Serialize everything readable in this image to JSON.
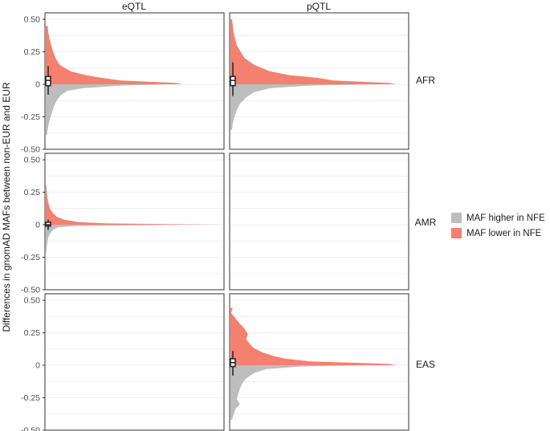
{
  "chart_data": {
    "type": "area",
    "description_free": true,
    "columns": [
      "eQTL",
      "pQTL"
    ],
    "rows": [
      "AFR",
      "AMR",
      "EAS"
    ],
    "ylabel": "Differences in gnomAD MAFs between non-EUR and EUR",
    "ylim": [
      -0.5,
      0.55
    ],
    "yticks": [
      0.5,
      0.25,
      0,
      -0.25,
      -0.5
    ],
    "ytick_labels": [
      "0.50",
      "0.25",
      "0",
      "-0.25",
      "-0.50"
    ],
    "grid": true,
    "legend": {
      "placement": "right",
      "entries": [
        {
          "label": "MAF higher in NFE",
          "color": "#bdbdbd"
        },
        {
          "label": "MAF lower in NFE",
          "color": "#f4806f"
        }
      ]
    },
    "colors": {
      "higher": "#bdbdbd",
      "lower": "#f4806f",
      "box": "#2b2b2b"
    },
    "panels": [
      {
        "row": "AFR",
        "col": "eQTL",
        "present": true,
        "x_max": 0.28,
        "lower": [
          [
            0.45,
            0.003
          ],
          [
            0.4,
            0.004
          ],
          [
            0.35,
            0.006
          ],
          [
            0.3,
            0.009
          ],
          [
            0.25,
            0.012
          ],
          [
            0.2,
            0.016
          ],
          [
            0.15,
            0.022
          ],
          [
            0.1,
            0.04
          ],
          [
            0.07,
            0.065
          ],
          [
            0.05,
            0.09
          ],
          [
            0.03,
            0.12
          ],
          [
            0.01,
            0.21
          ],
          [
            0.0,
            0.22
          ]
        ],
        "higher": [
          [
            0.0,
            0.2
          ],
          [
            -0.01,
            0.12
          ],
          [
            -0.03,
            0.06
          ],
          [
            -0.05,
            0.035
          ],
          [
            -0.08,
            0.025
          ],
          [
            -0.12,
            0.018
          ],
          [
            -0.16,
            0.014
          ],
          [
            -0.2,
            0.011
          ],
          [
            -0.25,
            0.008
          ],
          [
            -0.3,
            0.005
          ],
          [
            -0.35,
            0.003
          ],
          [
            -0.39,
            0.002
          ]
        ],
        "box": {
          "whisker_low": -0.08,
          "q1": -0.01,
          "median": 0.03,
          "q3": 0.06,
          "whisker_high": 0.14
        }
      },
      {
        "row": "AFR",
        "col": "pQTL",
        "present": true,
        "x_max": 0.22,
        "lower": [
          [
            0.5,
            0.002
          ],
          [
            0.45,
            0.003
          ],
          [
            0.4,
            0.004
          ],
          [
            0.35,
            0.006
          ],
          [
            0.3,
            0.008
          ],
          [
            0.25,
            0.013
          ],
          [
            0.2,
            0.018
          ],
          [
            0.15,
            0.03
          ],
          [
            0.1,
            0.05
          ],
          [
            0.07,
            0.075
          ],
          [
            0.05,
            0.11
          ],
          [
            0.03,
            0.13
          ],
          [
            0.01,
            0.2
          ],
          [
            0.0,
            0.21
          ]
        ],
        "higher": [
          [
            0.0,
            0.19
          ],
          [
            -0.01,
            0.1
          ],
          [
            -0.03,
            0.05
          ],
          [
            -0.06,
            0.03
          ],
          [
            -0.1,
            0.02
          ],
          [
            -0.15,
            0.012
          ],
          [
            -0.2,
            0.008
          ],
          [
            -0.25,
            0.005
          ],
          [
            -0.3,
            0.003
          ],
          [
            -0.35,
            0.002
          ]
        ],
        "box": {
          "whisker_low": -0.09,
          "q1": -0.01,
          "median": 0.03,
          "q3": 0.06,
          "whisker_high": 0.17
        }
      },
      {
        "row": "AMR",
        "col": "eQTL",
        "present": true,
        "x_max": 0.85,
        "lower": [
          [
            0.31,
            0.002
          ],
          [
            0.27,
            0.004
          ],
          [
            0.22,
            0.007
          ],
          [
            0.18,
            0.011
          ],
          [
            0.15,
            0.016
          ],
          [
            0.12,
            0.022
          ],
          [
            0.09,
            0.035
          ],
          [
            0.06,
            0.055
          ],
          [
            0.04,
            0.09
          ],
          [
            0.02,
            0.16
          ],
          [
            0.01,
            0.3
          ],
          [
            0.0,
            0.95
          ]
        ],
        "higher": [
          [
            0.0,
            0.6
          ],
          [
            -0.01,
            0.14
          ],
          [
            -0.02,
            0.06
          ],
          [
            -0.04,
            0.035
          ],
          [
            -0.07,
            0.02
          ],
          [
            -0.1,
            0.012
          ],
          [
            -0.14,
            0.007
          ],
          [
            -0.18,
            0.004
          ],
          [
            -0.22,
            0.002
          ]
        ],
        "box": {
          "whisker_low": -0.04,
          "q1": -0.01,
          "median": 0.0,
          "q3": 0.02,
          "whisker_high": 0.04
        }
      },
      {
        "row": "AMR",
        "col": "pQTL",
        "present": false
      },
      {
        "row": "EAS",
        "col": "eQTL",
        "present": false
      },
      {
        "row": "EAS",
        "col": "pQTL",
        "present": true,
        "x_max": 0.22,
        "lower": [
          [
            0.44,
            0.003
          ],
          [
            0.4,
            0.001
          ],
          [
            0.32,
            0.012
          ],
          [
            0.28,
            0.018
          ],
          [
            0.24,
            0.022
          ],
          [
            0.2,
            0.02
          ],
          [
            0.16,
            0.025
          ],
          [
            0.13,
            0.03
          ],
          [
            0.1,
            0.04
          ],
          [
            0.07,
            0.055
          ],
          [
            0.05,
            0.07
          ],
          [
            0.03,
            0.1
          ],
          [
            0.01,
            0.2
          ],
          [
            0.0,
            0.21
          ]
        ],
        "higher": [
          [
            0.0,
            0.17
          ],
          [
            -0.01,
            0.09
          ],
          [
            -0.03,
            0.045
          ],
          [
            -0.06,
            0.03
          ],
          [
            -0.1,
            0.02
          ],
          [
            -0.14,
            0.015
          ],
          [
            -0.18,
            0.012
          ],
          [
            -0.22,
            0.01
          ],
          [
            -0.26,
            0.008
          ],
          [
            -0.3,
            0.012
          ],
          [
            -0.34,
            0.006
          ],
          [
            -0.38,
            0.004
          ],
          [
            -0.42,
            0.002
          ]
        ],
        "box": {
          "whisker_low": -0.08,
          "q1": -0.01,
          "median": 0.02,
          "q3": 0.05,
          "whisker_high": 0.11
        }
      }
    ]
  }
}
